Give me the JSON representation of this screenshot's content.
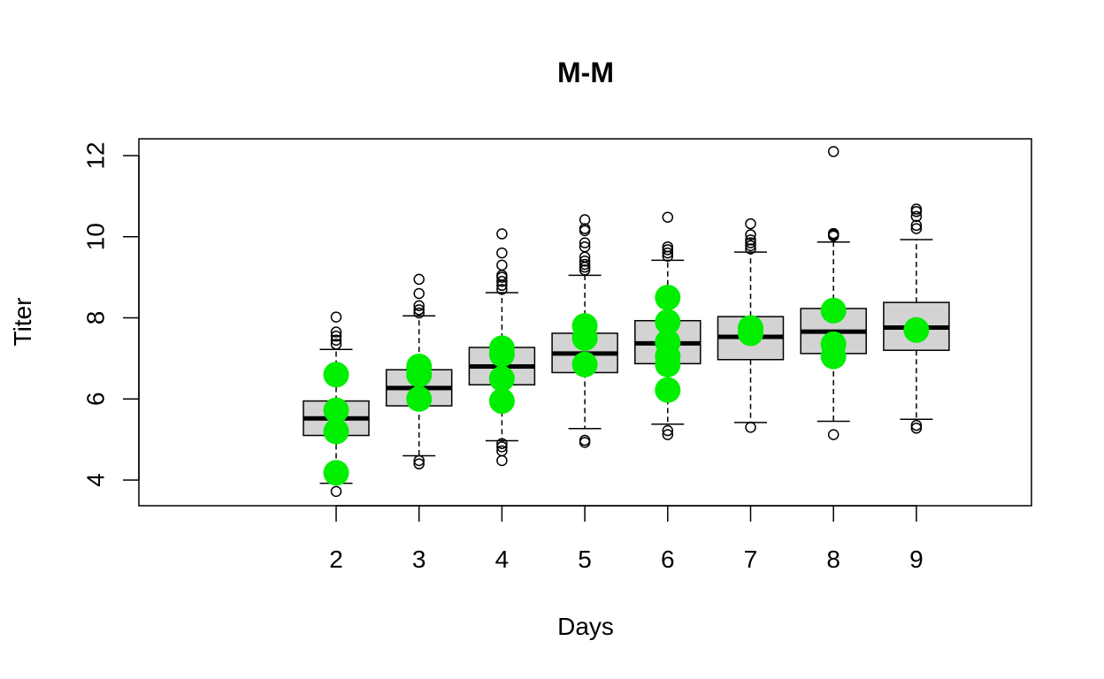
{
  "chart_data": {
    "type": "box",
    "title": "M-M",
    "xlabel": "Days",
    "ylabel": "Titer",
    "x_ticks": [
      "2",
      "3",
      "4",
      "5",
      "6",
      "7",
      "8",
      "9"
    ],
    "y_ticks": [
      "4",
      "6",
      "8",
      "10",
      "12"
    ],
    "ylim": [
      3.4,
      12.45
    ],
    "colors": {
      "box_fill": "#d3d3d3",
      "points": "#00ee00",
      "median": "#000000"
    },
    "boxes": [
      {
        "day": "2",
        "q1": 5.1,
        "median": 5.52,
        "q3": 5.95,
        "whisker_low": 3.92,
        "whisker_high": 7.22,
        "outliers": [
          3.72,
          7.35,
          7.45,
          7.55,
          7.65,
          8.02
        ],
        "observed": [
          6.6,
          5.72,
          5.2,
          4.18
        ]
      },
      {
        "day": "3",
        "q1": 5.83,
        "median": 6.27,
        "q3": 6.72,
        "whisker_low": 4.6,
        "whisker_high": 8.05,
        "outliers": [
          4.4,
          4.48,
          8.12,
          8.2,
          8.3,
          8.6,
          8.95
        ],
        "observed": [
          6.8,
          6.6,
          6.0
        ]
      },
      {
        "day": "4",
        "q1": 6.35,
        "median": 6.8,
        "q3": 7.27,
        "whisker_low": 4.97,
        "whisker_high": 8.62,
        "outliers": [
          4.48,
          4.72,
          4.82,
          4.9,
          8.7,
          8.8,
          8.9,
          9.0,
          9.05,
          9.3,
          9.6,
          10.07
        ],
        "observed": [
          7.25,
          7.1,
          6.5,
          5.95
        ]
      },
      {
        "day": "5",
        "q1": 6.65,
        "median": 7.12,
        "q3": 7.62,
        "whisker_low": 5.27,
        "whisker_high": 9.05,
        "outliers": [
          4.93,
          4.98,
          9.18,
          9.25,
          9.32,
          9.4,
          9.5,
          9.75,
          9.85,
          10.15,
          10.2,
          10.42
        ],
        "observed": [
          7.8,
          7.5,
          6.85
        ]
      },
      {
        "day": "6",
        "q1": 6.87,
        "median": 7.37,
        "q3": 7.93,
        "whisker_low": 5.38,
        "whisker_high": 9.42,
        "outliers": [
          5.12,
          5.22,
          9.52,
          9.6,
          9.68,
          9.75,
          10.48
        ],
        "observed": [
          8.5,
          7.9,
          7.4,
          7.05,
          6.85,
          6.22
        ]
      },
      {
        "day": "7",
        "q1": 6.97,
        "median": 7.53,
        "q3": 8.03,
        "whisker_low": 5.42,
        "whisker_high": 9.62,
        "outliers": [
          5.3,
          9.7,
          9.78,
          9.85,
          9.92,
          10.05,
          10.32
        ],
        "observed": [
          7.75,
          7.62
        ]
      },
      {
        "day": "8",
        "q1": 7.12,
        "median": 7.66,
        "q3": 8.23,
        "whisker_low": 5.45,
        "whisker_high": 9.87,
        "outliers": [
          5.12,
          10.02,
          10.05,
          10.08,
          12.1
        ],
        "observed": [
          8.18,
          7.35,
          7.05
        ]
      },
      {
        "day": "9",
        "q1": 7.2,
        "median": 7.76,
        "q3": 8.38,
        "whisker_low": 5.5,
        "whisker_high": 9.93,
        "outliers": [
          5.28,
          5.35,
          10.2,
          10.28,
          10.5,
          10.62,
          10.68
        ],
        "observed": [
          7.7
        ]
      }
    ]
  }
}
